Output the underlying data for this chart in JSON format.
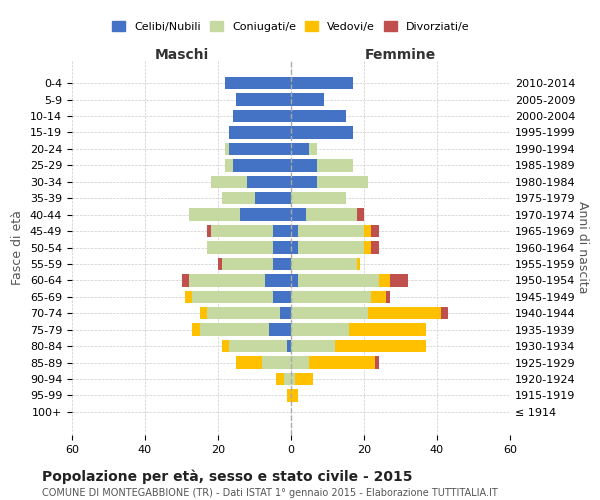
{
  "age_groups": [
    "100+",
    "95-99",
    "90-94",
    "85-89",
    "80-84",
    "75-79",
    "70-74",
    "65-69",
    "60-64",
    "55-59",
    "50-54",
    "45-49",
    "40-44",
    "35-39",
    "30-34",
    "25-29",
    "20-24",
    "15-19",
    "10-14",
    "5-9",
    "0-4"
  ],
  "birth_years": [
    "≤ 1914",
    "1915-1919",
    "1920-1924",
    "1925-1929",
    "1930-1934",
    "1935-1939",
    "1940-1944",
    "1945-1949",
    "1950-1954",
    "1955-1959",
    "1960-1964",
    "1965-1969",
    "1970-1974",
    "1975-1979",
    "1980-1984",
    "1985-1989",
    "1990-1994",
    "1995-1999",
    "2000-2004",
    "2005-2009",
    "2010-2014"
  ],
  "maschi": {
    "celibi": [
      0,
      0,
      0,
      0,
      1,
      6,
      3,
      5,
      7,
      5,
      5,
      5,
      14,
      10,
      12,
      16,
      17,
      17,
      16,
      15,
      18
    ],
    "coniugati": [
      0,
      0,
      2,
      8,
      16,
      19,
      20,
      22,
      21,
      14,
      18,
      17,
      14,
      9,
      10,
      2,
      1,
      0,
      0,
      0,
      0
    ],
    "vedovi": [
      0,
      1,
      2,
      7,
      2,
      2,
      2,
      2,
      0,
      0,
      0,
      0,
      0,
      0,
      0,
      0,
      0,
      0,
      0,
      0,
      0
    ],
    "divorziati": [
      0,
      0,
      0,
      0,
      0,
      0,
      0,
      0,
      2,
      1,
      0,
      1,
      0,
      0,
      0,
      0,
      0,
      0,
      0,
      0,
      0
    ]
  },
  "femmine": {
    "nubili": [
      0,
      0,
      0,
      0,
      0,
      0,
      0,
      0,
      2,
      0,
      2,
      2,
      4,
      0,
      7,
      7,
      5,
      17,
      15,
      9,
      17
    ],
    "coniugate": [
      0,
      0,
      1,
      5,
      12,
      16,
      21,
      22,
      22,
      18,
      18,
      18,
      14,
      15,
      14,
      10,
      2,
      0,
      0,
      0,
      0
    ],
    "vedove": [
      0,
      2,
      5,
      18,
      25,
      21,
      20,
      4,
      3,
      1,
      2,
      2,
      0,
      0,
      0,
      0,
      0,
      0,
      0,
      0,
      0
    ],
    "divorziate": [
      0,
      0,
      0,
      1,
      0,
      0,
      2,
      1,
      5,
      0,
      2,
      2,
      2,
      0,
      0,
      0,
      0,
      0,
      0,
      0,
      0
    ]
  },
  "colors": {
    "celibi_nubili": "#4472c4",
    "coniugati": "#c5d9a0",
    "vedovi": "#ffc000",
    "divorziati": "#c0504d"
  },
  "xlim": 60,
  "title": "Popolazione per età, sesso e stato civile - 2015",
  "subtitle": "COMUNE DI MONTEGABBIONE (TR) - Dati ISTAT 1° gennaio 2015 - Elaborazione TUTTITALIA.IT",
  "ylabel_left": "Fasce di età",
  "ylabel_right": "Anni di nascita",
  "xlabel_left": "Maschi",
  "xlabel_right": "Femmine",
  "bg_color": "#ffffff",
  "grid_color": "#cccccc"
}
